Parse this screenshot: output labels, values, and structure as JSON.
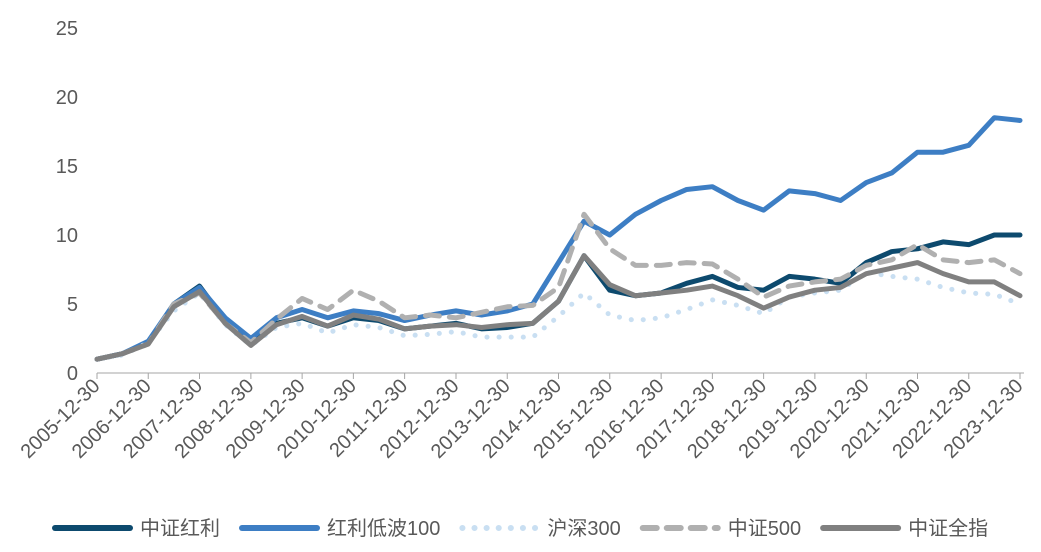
{
  "chart_data": {
    "type": "line",
    "x": [
      "2005-12-30",
      "2006-06-30",
      "2006-12-30",
      "2007-06-30",
      "2007-12-30",
      "2008-06-30",
      "2008-12-30",
      "2009-06-30",
      "2009-12-30",
      "2010-06-30",
      "2010-12-30",
      "2011-06-30",
      "2011-12-30",
      "2012-06-30",
      "2012-12-30",
      "2013-06-30",
      "2013-12-30",
      "2014-06-30",
      "2014-12-30",
      "2015-06-30",
      "2015-12-30",
      "2016-06-30",
      "2016-12-30",
      "2017-06-30",
      "2017-12-30",
      "2018-06-30",
      "2018-12-30",
      "2019-06-30",
      "2019-12-30",
      "2020-06-30",
      "2020-12-30",
      "2021-06-30",
      "2021-12-30",
      "2022-06-30",
      "2022-12-30",
      "2023-06-30",
      "2023-12-30"
    ],
    "series": [
      {
        "name": "中证红利",
        "color": "#0d4a6e",
        "line_style": "solid",
        "values": [
          1,
          1.4,
          2.2,
          5.0,
          6.3,
          3.8,
          2.2,
          3.6,
          4.0,
          3.4,
          4.0,
          3.8,
          3.2,
          3.4,
          3.6,
          3.2,
          3.3,
          3.6,
          5.2,
          8.5,
          6.0,
          5.6,
          5.8,
          6.5,
          7.0,
          6.2,
          6.0,
          7.0,
          6.8,
          6.5,
          8.0,
          8.8,
          9.0,
          9.5,
          9.3,
          10.0,
          10.0
        ]
      },
      {
        "name": "红利低波100",
        "color": "#3d7ec4",
        "line_style": "solid",
        "values": [
          1,
          1.4,
          2.3,
          5.0,
          6.2,
          4.0,
          2.5,
          4.0,
          4.6,
          4.0,
          4.5,
          4.3,
          3.8,
          4.2,
          4.5,
          4.2,
          4.5,
          5.0,
          8.0,
          11.0,
          10.0,
          11.5,
          12.5,
          13.3,
          13.5,
          12.5,
          11.8,
          13.2,
          13.0,
          12.5,
          13.8,
          14.5,
          16.0,
          16.0,
          16.5,
          18.5,
          18.3
        ]
      },
      {
        "name": "沪深300",
        "color": "#c9dff2",
        "line_style": "dotted",
        "values": [
          1,
          1.3,
          2.2,
          4.5,
          5.8,
          3.5,
          2.0,
          3.3,
          3.6,
          2.9,
          3.5,
          3.3,
          2.7,
          2.8,
          3.0,
          2.6,
          2.6,
          2.6,
          4.1,
          5.8,
          4.2,
          3.8,
          4.0,
          4.6,
          5.3,
          4.9,
          4.3,
          5.5,
          5.8,
          6.0,
          7.3,
          7.0,
          6.8,
          6.2,
          5.8,
          5.7,
          5.0
        ]
      },
      {
        "name": "中证500",
        "color": "#b0b0b0",
        "line_style": "dashed",
        "values": [
          1,
          1.4,
          2.1,
          5.0,
          5.8,
          3.6,
          2.2,
          3.9,
          5.4,
          4.6,
          6.0,
          5.2,
          4.0,
          4.2,
          4.0,
          4.4,
          4.8,
          4.9,
          6.2,
          11.5,
          9.0,
          7.8,
          7.8,
          8.0,
          7.9,
          6.8,
          5.5,
          6.3,
          6.6,
          6.8,
          7.8,
          8.2,
          9.3,
          8.2,
          8.0,
          8.2,
          7.2
        ]
      },
      {
        "name": "中证全指",
        "color": "#808080",
        "line_style": "solid",
        "values": [
          1,
          1.4,
          2.1,
          4.8,
          5.9,
          3.6,
          2.0,
          3.5,
          4.1,
          3.4,
          4.2,
          3.9,
          3.2,
          3.4,
          3.5,
          3.3,
          3.5,
          3.6,
          5.2,
          8.5,
          6.4,
          5.6,
          5.8,
          6.0,
          6.3,
          5.6,
          4.7,
          5.5,
          6.0,
          6.2,
          7.2,
          7.6,
          8.0,
          7.2,
          6.6,
          6.6,
          5.6
        ]
      }
    ],
    "xlim": [
      "2005-12-30",
      "2023-12-30"
    ],
    "xticks": [
      "2005-12-30",
      "2006-12-30",
      "2007-12-30",
      "2008-12-30",
      "2009-12-30",
      "2010-12-30",
      "2011-12-30",
      "2012-12-30",
      "2013-12-30",
      "2014-12-30",
      "2015-12-30",
      "2016-12-30",
      "2017-12-30",
      "2018-12-30",
      "2019-12-30",
      "2020-12-30",
      "2021-12-30",
      "2022-12-30",
      "2023-12-30"
    ],
    "ylim": [
      0,
      25
    ],
    "yticks": [
      0,
      5,
      10,
      15,
      20,
      25
    ],
    "grid": false,
    "legend": "bottom"
  }
}
